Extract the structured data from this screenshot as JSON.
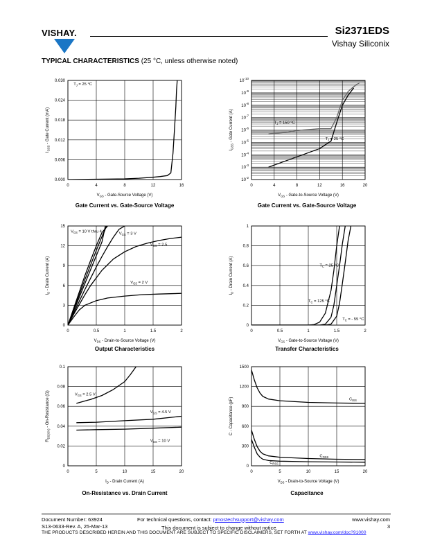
{
  "header": {
    "logo_text": "VISHAY.",
    "part_number": "Si2371EDS",
    "company": "Vishay Siliconix"
  },
  "section": {
    "title": "TYPICAL CHARACTERISTICS",
    "note": "(25 °C, unless otherwise noted)"
  },
  "chart_data": [
    {
      "id": "gate-current-linear",
      "type": "line",
      "title": "Gate Current vs. Gate-Source Voltage",
      "xlabel": "V_GS - Gate-Source Voltage (V)",
      "ylabel": "I_GSS - Gate Current (mA)",
      "xlim": [
        0,
        16
      ],
      "ylim": [
        0,
        0.03
      ],
      "xticks": [
        "0",
        "4",
        "8",
        "12",
        "16"
      ],
      "yticks": [
        "0.000",
        "0.006",
        "0.012",
        "0.018",
        "0.024",
        "0.030"
      ],
      "annotations": [
        {
          "text": "T_J = 25 °C",
          "x": 0.8,
          "y": 0.0285
        }
      ],
      "series": [
        {
          "x": [
            0,
            4,
            8,
            10,
            12,
            13,
            14,
            14.5,
            14.8,
            15.0,
            15.2,
            15.3,
            15.4
          ],
          "y": [
            0,
            0.0001,
            0.0002,
            0.0004,
            0.0007,
            0.0009,
            0.0012,
            0.002,
            0.008,
            0.015,
            0.022,
            0.027,
            0.03
          ]
        }
      ]
    },
    {
      "id": "gate-current-log",
      "type": "line",
      "title": "Gate Current vs. Gate-Source Voltage",
      "xlabel": "V_GS - Gate-to-Source Voltage (V)",
      "ylabel": "I_GSS - Gate Current (A)",
      "xlim": [
        0,
        20
      ],
      "ylim": [
        -10,
        -2
      ],
      "yscale": "log",
      "xticks": [
        "0",
        "4",
        "8",
        "12",
        "16",
        "20"
      ],
      "yticks": [
        "10^-2",
        "10^-3",
        "10^-4",
        "10^-5",
        "10^-6",
        "10^-7",
        "10^-8",
        "10^-9",
        "10^-10"
      ],
      "annotations": [
        {
          "text": "T_J = 150 °C",
          "x": 4,
          "y": -5.5
        },
        {
          "text": "T_J = 25 °C",
          "x": 13,
          "y": -6.8
        }
      ],
      "series": [
        {
          "name": "T_J = 150 °C",
          "x": [
            3,
            6,
            9,
            12,
            14,
            15,
            16,
            17,
            18,
            19
          ],
          "y": [
            -6.3,
            -6.2,
            -6.0,
            -5.9,
            -5.9,
            -5.0,
            -3.6,
            -2.9,
            -2.5,
            -2.2
          ]
        },
        {
          "name": "T_J = 25 °C",
          "x": [
            3,
            6,
            9,
            12,
            14,
            15,
            16,
            17,
            18
          ],
          "y": [
            -9.0,
            -8.5,
            -8.0,
            -7.5,
            -6.9,
            -5.4,
            -4.0,
            -3.2,
            -2.6
          ]
        }
      ]
    },
    {
      "id": "output-characteristics",
      "type": "line",
      "title": "Output Characteristics",
      "xlabel": "V_DS - Drain-to-Source Voltage (V)",
      "ylabel": "I_D - Drain Current (A)",
      "xlim": [
        0,
        2
      ],
      "ylim": [
        0,
        15
      ],
      "xticks": [
        "0",
        "0.5",
        "1",
        "1.5",
        "2"
      ],
      "yticks": [
        "0",
        "3",
        "6",
        "9",
        "12",
        "15"
      ],
      "annotations": [
        {
          "text": "V_GS = 10 V thru 4 V",
          "x": 0.05,
          "y": 14
        },
        {
          "text": "V_GS = 3 V",
          "x": 0.9,
          "y": 13.7
        },
        {
          "text": "V_GS = 2.5",
          "x": 1.45,
          "y": 12
        },
        {
          "text": "V_GS = 2 V",
          "x": 1.1,
          "y": 6.3
        }
      ],
      "series": [
        {
          "name": "V_GS = 10 V thru 4 V (a)",
          "x": [
            0,
            0.1,
            0.2,
            0.3,
            0.4,
            0.5,
            0.6,
            0.7
          ],
          "y": [
            0,
            2.5,
            5,
            7.5,
            9.8,
            12,
            14,
            15
          ]
        },
        {
          "name": "V_GS = 10 V thru 4 V (b)",
          "x": [
            0,
            0.1,
            0.2,
            0.3,
            0.4,
            0.5,
            0.6,
            0.68
          ],
          "y": [
            0,
            2.3,
            4.6,
            6.9,
            9.1,
            11.3,
            13.4,
            15
          ]
        },
        {
          "name": "V_GS = 10 V thru 4 V (c)",
          "x": [
            0,
            0.1,
            0.2,
            0.3,
            0.4,
            0.5,
            0.6,
            0.66
          ],
          "y": [
            0,
            2.1,
            4.2,
            6.3,
            8.4,
            10.5,
            12.6,
            15
          ]
        },
        {
          "name": "V_GS = 3 V",
          "x": [
            0,
            0.1,
            0.2,
            0.3,
            0.4,
            0.5,
            0.6,
            0.7,
            0.8,
            0.9,
            1.0
          ],
          "y": [
            0,
            1.8,
            3.6,
            5.4,
            7.1,
            8.8,
            10.4,
            11.9,
            13.3,
            14.5,
            15
          ]
        },
        {
          "name": "V_GS = 2.5 V",
          "x": [
            0,
            0.1,
            0.2,
            0.3,
            0.4,
            0.6,
            0.8,
            1.0,
            1.2,
            1.4,
            1.6,
            1.8,
            2.0
          ],
          "y": [
            0,
            1.6,
            3.1,
            4.6,
            6.0,
            8.3,
            10.0,
            11.1,
            11.9,
            12.4,
            12.8,
            13.1,
            13.3
          ]
        },
        {
          "name": "V_GS = 2 V",
          "x": [
            0,
            0.1,
            0.2,
            0.3,
            0.5,
            0.7,
            1.0,
            1.3,
            1.6,
            2.0
          ],
          "y": [
            0,
            1.2,
            2.3,
            3.0,
            3.7,
            4.1,
            4.4,
            4.6,
            4.7,
            4.8
          ]
        }
      ]
    },
    {
      "id": "transfer-characteristics",
      "type": "line",
      "title": "Transfer Characteristics",
      "xlabel": "V_GS - Gate-to-Source Voltage (V)",
      "ylabel": "I_D - Drain Current (A)",
      "xlim": [
        0,
        2
      ],
      "ylim": [
        0,
        1
      ],
      "xticks": [
        "0",
        "0.5",
        "1",
        "1.5",
        "2"
      ],
      "yticks": [
        "0",
        "0.2",
        "0.4",
        "0.6",
        "0.8",
        "1"
      ],
      "annotations": [
        {
          "text": "T_C = 25 °C",
          "x": 1.2,
          "y": 0.59
        },
        {
          "text": "T_C = 125 °C",
          "x": 1.0,
          "y": 0.23
        },
        {
          "text": "T_C = - 55 °C",
          "x": 1.6,
          "y": 0.05
        }
      ],
      "series": [
        {
          "name": "T_C = 125 °C",
          "x": [
            0,
            1.0,
            1.1,
            1.2,
            1.3,
            1.4,
            1.45,
            1.5,
            1.55
          ],
          "y": [
            0,
            0,
            0.005,
            0.03,
            0.12,
            0.35,
            0.55,
            0.8,
            1.0
          ]
        },
        {
          "name": "T_C = 25 °C",
          "x": [
            0,
            1.2,
            1.3,
            1.4,
            1.45,
            1.5,
            1.55,
            1.6,
            1.65
          ],
          "y": [
            0,
            0,
            0.01,
            0.08,
            0.2,
            0.4,
            0.6,
            0.82,
            1.0
          ]
        },
        {
          "name": "T_C = - 55 °C",
          "x": [
            0,
            1.3,
            1.4,
            1.5,
            1.55,
            1.6,
            1.65,
            1.7,
            1.75
          ],
          "y": [
            0,
            0,
            0.01,
            0.09,
            0.22,
            0.42,
            0.63,
            0.85,
            1.0
          ]
        }
      ]
    },
    {
      "id": "on-resistance",
      "type": "line",
      "title": "On-Resistance vs. Drain Current",
      "xlabel": "I_D - Drain Current (A)",
      "ylabel": "R_DS(on) - On-Resistance (Ω)",
      "xlim": [
        0,
        20
      ],
      "ylim": [
        0,
        0.1
      ],
      "xticks": [
        "0",
        "5",
        "10",
        "15",
        "20"
      ],
      "yticks": [
        "0",
        "0.02",
        "0.04",
        "0.06",
        "0.08",
        "0.1"
      ],
      "annotations": [
        {
          "text": "V_GS = 2.5 V",
          "x": 1.2,
          "y": 0.071
        },
        {
          "text": "V_GS = 4.5 V",
          "x": 14.5,
          "y": 0.053
        },
        {
          "text": "V_GS = 10 V",
          "x": 14.5,
          "y": 0.024
        }
      ],
      "series": [
        {
          "name": "V_GS = 2.5 V",
          "x": [
            1.5,
            4,
            6,
            8,
            10,
            11,
            12
          ],
          "y": [
            0.063,
            0.067,
            0.071,
            0.077,
            0.085,
            0.092,
            0.1
          ]
        },
        {
          "name": "V_GS = 4.5 V",
          "x": [
            1.5,
            5,
            10,
            15,
            20
          ],
          "y": [
            0.0435,
            0.044,
            0.0455,
            0.047,
            0.05
          ]
        },
        {
          "name": "V_GS = 10 V",
          "x": [
            1.5,
            5,
            10,
            15,
            20
          ],
          "y": [
            0.036,
            0.0365,
            0.037,
            0.038,
            0.039
          ]
        }
      ]
    },
    {
      "id": "capacitance",
      "type": "line",
      "title": "Capacitance",
      "xlabel": "V_DS - Drain-to-Source Voltage (V)",
      "ylabel": "C - Capacitance (pF)",
      "xlim": [
        0,
        20
      ],
      "ylim": [
        0,
        1500
      ],
      "xticks": [
        "0",
        "5",
        "10",
        "15",
        "20"
      ],
      "yticks": [
        "0",
        "300",
        "600",
        "900",
        "1200",
        "1500"
      ],
      "annotations": [
        {
          "text": "C_iss",
          "x": 17.2,
          "y": 990
        },
        {
          "text": "C_oss",
          "x": 12,
          "y": 130
        },
        {
          "text": "C_rss",
          "x": 3.2,
          "y": 30
        }
      ],
      "series": [
        {
          "name": "C_iss",
          "x": [
            0,
            0.5,
            1,
            1.5,
            2,
            3,
            5,
            10,
            15,
            20
          ],
          "y": [
            1450,
            1300,
            1180,
            1100,
            1050,
            1010,
            985,
            960,
            950,
            945
          ]
        },
        {
          "name": "C_oss",
          "x": [
            0,
            0.5,
            1,
            1.5,
            2,
            3,
            5,
            10,
            15,
            20
          ],
          "y": [
            540,
            400,
            290,
            220,
            180,
            150,
            130,
            110,
            100,
            95
          ]
        },
        {
          "name": "C_rss",
          "x": [
            0,
            0.5,
            1,
            1.5,
            2,
            3,
            5,
            10,
            15,
            20
          ],
          "y": [
            400,
            280,
            180,
            130,
            100,
            80,
            70,
            62,
            58,
            55
          ]
        }
      ]
    }
  ],
  "footer": {
    "doc_number": "Document Number: 63924",
    "revision": "S13-0633-Rev. A, 25-Mar-13",
    "questions_prefix": "For technical questions, contact: ",
    "email": "pmostechsupport@vishay.com",
    "website": "www.vishay.com",
    "page": "3",
    "change_notice": "This document is subject to change without notice.",
    "disclaimer_prefix": "THE PRODUCTS DESCRIBED HEREIN AND THIS DOCUMENT ARE SUBJECT TO SPECIFIC DISCLAIMERS, SET FORTH AT ",
    "disclaimer_link": "www.vishay.com/doc?91000"
  }
}
